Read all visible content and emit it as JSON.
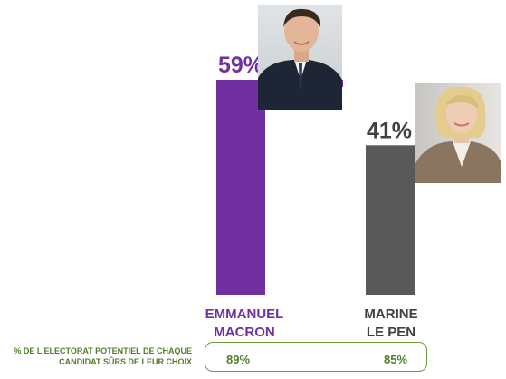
{
  "chart_data": {
    "type": "bar",
    "categories": [
      "EMMANUEL\nMACRON",
      "MARINE\nLE PEN"
    ],
    "values": [
      59,
      41
    ],
    "value_labels": [
      "59%",
      "41%"
    ],
    "ylim": [
      0,
      100
    ],
    "grid": false,
    "colors": [
      "#7030a0",
      "#595959"
    ],
    "label_colors": [
      "#7030a0",
      "#404040"
    ],
    "icons": [
      "macron-portrait",
      "le-pen-portrait"
    ]
  },
  "footnote": "% DE L'ELECTORAT POTENTIEL DE CHAQUE\nCANDIDAT SÛRS DE LEUR CHOIX",
  "certainty": {
    "macron": "89%",
    "le_pen": "85%"
  }
}
